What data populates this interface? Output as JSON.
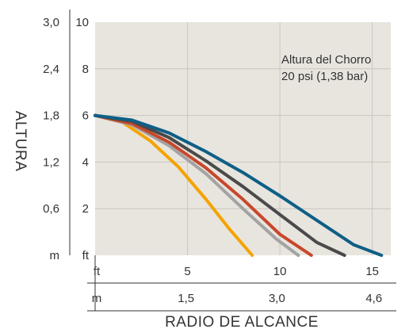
{
  "chart_data": {
    "type": "line",
    "title": "",
    "xlabel": "RADIO DE ALCANCE",
    "ylabel": "ALTURA",
    "annotation": [
      "Altura del Chorro",
      "20 psi (1,38 bar)"
    ],
    "x_unit_ft": "ft",
    "x_unit_m": "m",
    "y_unit_ft": "ft",
    "y_unit_m": "m",
    "xlim": [
      0,
      16
    ],
    "ylim": [
      0,
      10
    ],
    "x_ticks_ft": [
      {
        "value": 5,
        "label": "5"
      },
      {
        "value": 10,
        "label": "10"
      },
      {
        "value": 15,
        "label": "15"
      }
    ],
    "x_ticks_m": [
      {
        "value": 4.92,
        "label": "1,5"
      },
      {
        "value": 9.84,
        "label": "3,0"
      },
      {
        "value": 15.09,
        "label": "4,6"
      }
    ],
    "y_ticks_ft": [
      {
        "value": 2,
        "label": "2"
      },
      {
        "value": 4,
        "label": "4"
      },
      {
        "value": 6,
        "label": "6"
      },
      {
        "value": 8,
        "label": "8"
      },
      {
        "value": 10,
        "label": "10"
      }
    ],
    "y_ticks_m": [
      {
        "value": 2,
        "label": "0,6"
      },
      {
        "value": 4,
        "label": "1,2"
      },
      {
        "value": 6,
        "label": "1,8"
      },
      {
        "value": 8,
        "label": "2,4"
      },
      {
        "value": 10,
        "label": "3,0"
      }
    ],
    "grid": true,
    "colors": {
      "plot_bg": "#e8e5df",
      "grid": "#c9c6c0",
      "axis": "#333333"
    },
    "series": [
      {
        "color": "#f4a300",
        "x": [
          0,
          1.5,
          3,
          4.5,
          6,
          7.3,
          8.5
        ],
        "y": [
          6,
          5.7,
          4.9,
          3.8,
          2.4,
          1.1,
          0
        ]
      },
      {
        "color": "#a3a3a3",
        "x": [
          0,
          2,
          4,
          6,
          8,
          9.8,
          11
        ],
        "y": [
          6,
          5.6,
          4.7,
          3.5,
          2.0,
          0.7,
          0
        ]
      },
      {
        "color": "#c8472b",
        "x": [
          0,
          2,
          4,
          6,
          8,
          10,
          11.7
        ],
        "y": [
          6,
          5.65,
          4.85,
          3.75,
          2.4,
          0.9,
          0
        ]
      },
      {
        "color": "#4a4a4a",
        "x": [
          0,
          2,
          4,
          6,
          8,
          10,
          12,
          13.5
        ],
        "y": [
          6,
          5.75,
          5.05,
          4.05,
          2.95,
          1.75,
          0.55,
          0
        ]
      },
      {
        "color": "#0e5f86",
        "x": [
          0,
          2,
          4,
          6,
          8,
          10,
          12,
          14,
          15.5
        ],
        "y": [
          6,
          5.8,
          5.25,
          4.45,
          3.55,
          2.55,
          1.5,
          0.45,
          0
        ]
      }
    ]
  }
}
